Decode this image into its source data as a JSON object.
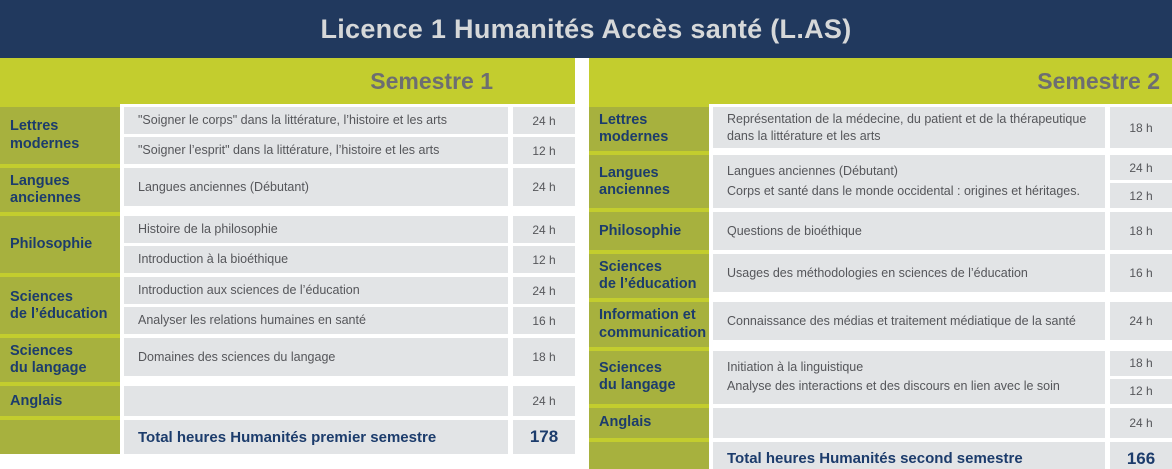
{
  "title": "Licence 1 Humanités Accès santé (L.AS)",
  "colors": {
    "navy": "#21395e",
    "banner_text": "#d6d8d9",
    "green": "#c3cd2e",
    "olive": "#a7b13e",
    "head_gray": "#6d6e71",
    "cell_gray": "#e2e4e6",
    "course_text": "#55565a",
    "cat_text": "#1c3c6c"
  },
  "semesters": [
    {
      "name": "Semestre 1",
      "blocks": [
        {
          "category_lines": [
            "Lettres",
            "modernes"
          ],
          "rows": [
            {
              "course": "\"Soigner le corps\" dans la littérature, l’histoire et les arts",
              "hours": "24 h"
            },
            {
              "course": "\"Soigner l’esprit\" dans la littérature, l’histoire et les arts",
              "hours": "12 h"
            }
          ]
        },
        {
          "category_lines": [
            "Langues",
            "anciennes"
          ],
          "rows": [
            {
              "course": "Langues anciennes (Débutant)",
              "hours": "24 h"
            }
          ]
        },
        {
          "category_lines": [
            "Philosophie"
          ],
          "rows": [
            {
              "course": "Histoire de la philosophie",
              "hours": "24 h"
            },
            {
              "course": "Introduction à la bioéthique",
              "hours": "12 h"
            }
          ]
        },
        {
          "category_lines": [
            "Sciences",
            "de l’éducation"
          ],
          "rows": [
            {
              "course": "Introduction aux sciences de l’éducation",
              "hours": "24 h"
            },
            {
              "course": "Analyser les relations humaines en santé",
              "hours": "16 h"
            }
          ]
        },
        {
          "category_lines": [
            "Sciences",
            "du langage"
          ],
          "rows": [
            {
              "course": "Domaines des sciences du langage",
              "hours": "18 h"
            }
          ]
        },
        {
          "category_lines": [
            "Anglais"
          ],
          "rows": [
            {
              "course": "",
              "hours": "24 h"
            }
          ]
        }
      ],
      "total": {
        "label": "Total heures Humanités premier semestre",
        "value": "178"
      }
    },
    {
      "name": "Semestre 2",
      "blocks": [
        {
          "category_lines": [
            "Lettres",
            "modernes"
          ],
          "rows": [
            {
              "course": "Représentation de la médecine, du patient et de la thérapeutique dans la littérature et les arts",
              "hours": "18 h"
            }
          ]
        },
        {
          "category_lines": [
            "Langues",
            "anciennes"
          ],
          "merged": true,
          "course_lines": [
            "Langues anciennes (Débutant)",
            "Corps et santé dans le monde occidental : origines et héritages."
          ],
          "hours": [
            "24 h",
            "12 h"
          ]
        },
        {
          "category_lines": [
            "Philosophie"
          ],
          "rows": [
            {
              "course": "Questions de bioéthique",
              "hours": "18 h"
            }
          ]
        },
        {
          "category_lines": [
            "Sciences",
            "de l’éducation"
          ],
          "rows": [
            {
              "course": "Usages des méthodologies en sciences de l’éducation",
              "hours": "16 h"
            }
          ]
        },
        {
          "category_lines": [
            "Information et",
            "communication"
          ],
          "rows": [
            {
              "course": "Connaissance des médias et traitement médiatique de la santé",
              "hours": "24 h"
            }
          ]
        },
        {
          "category_lines": [
            "Sciences",
            "du langage"
          ],
          "merged": true,
          "course_lines": [
            "Initiation à la linguistique",
            "Analyse des interactions et des discours en lien avec le soin"
          ],
          "hours": [
            "18 h",
            "12 h"
          ]
        },
        {
          "category_lines": [
            "Anglais"
          ],
          "rows": [
            {
              "course": "",
              "hours": "24 h"
            }
          ]
        }
      ],
      "total": {
        "label": "Total heures Humanités second semestre",
        "value": "166"
      }
    }
  ]
}
